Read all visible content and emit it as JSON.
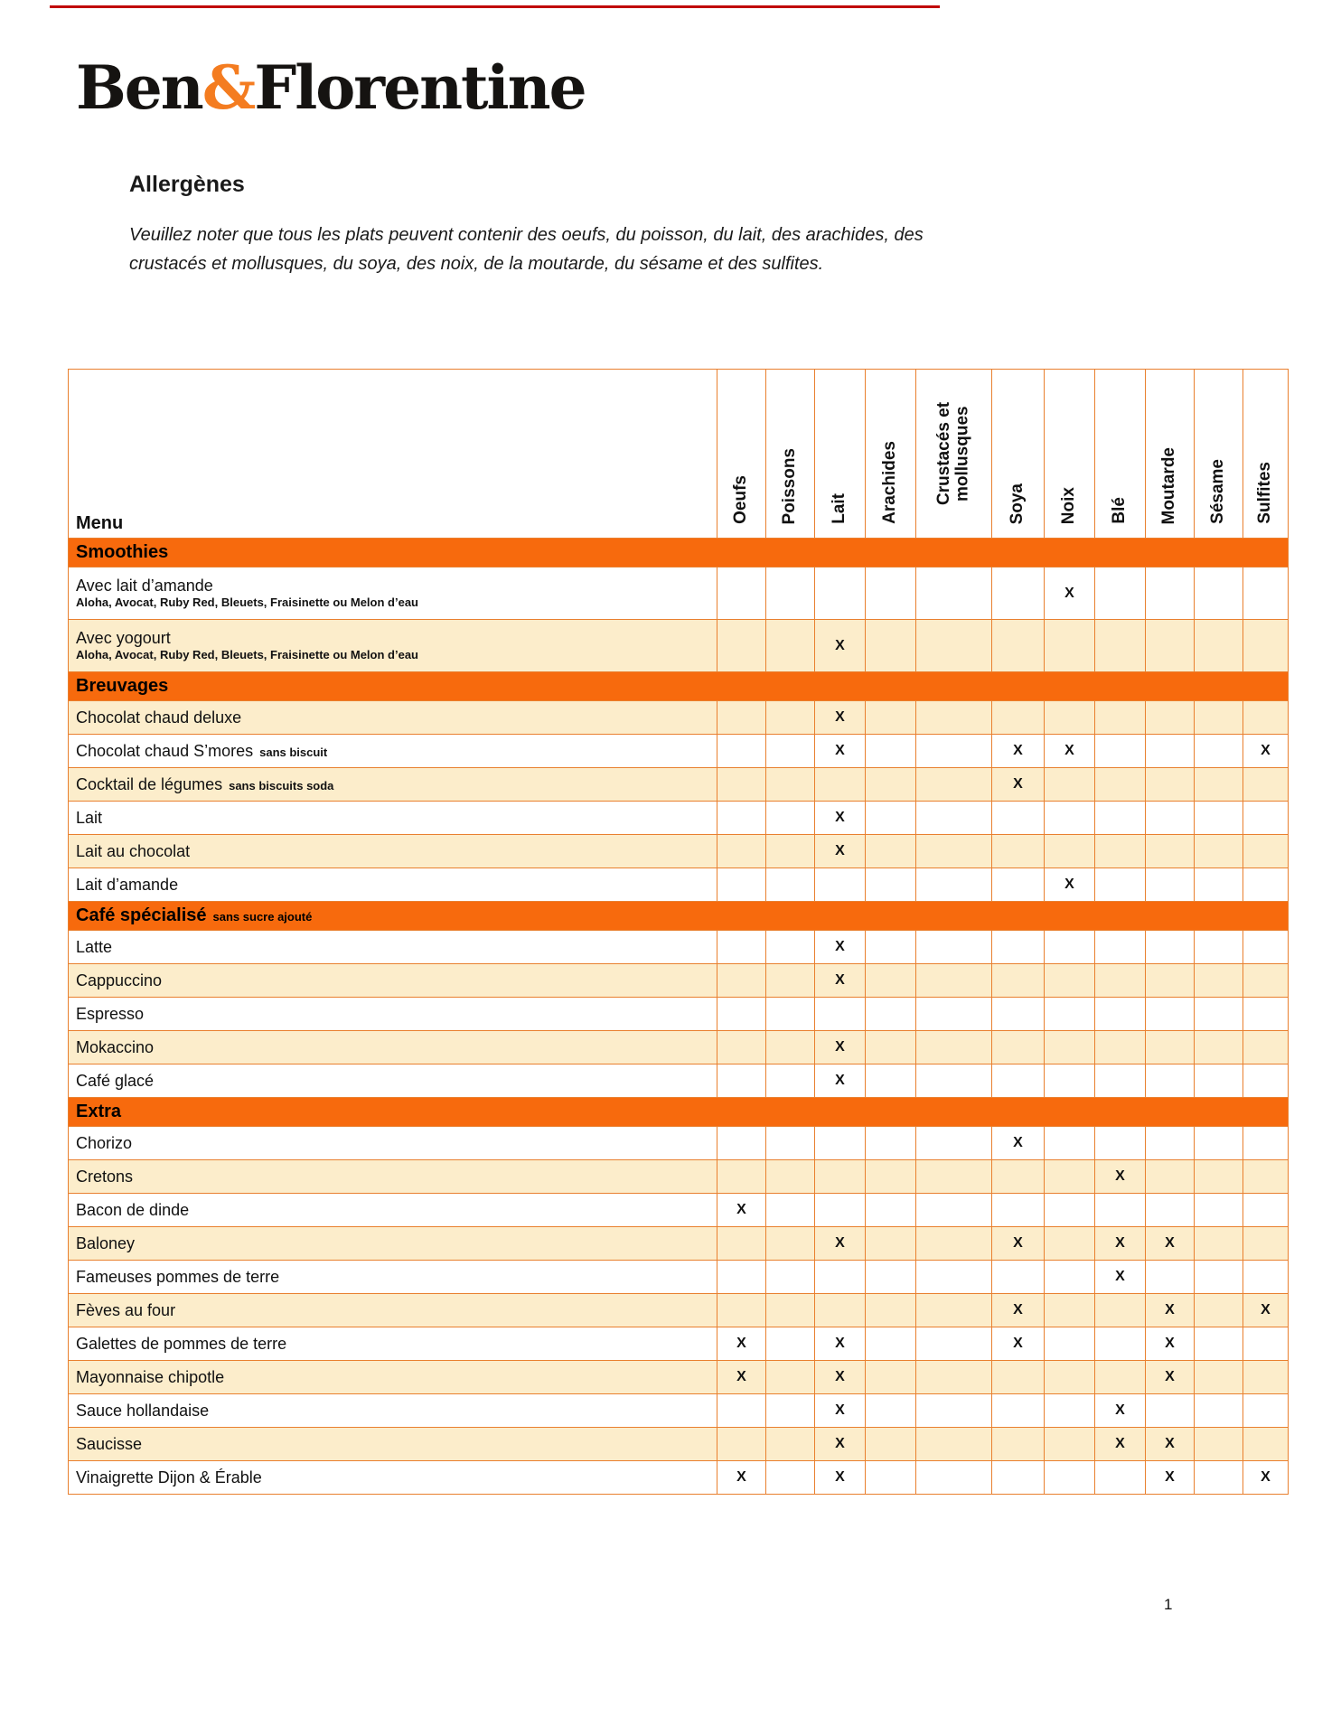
{
  "colors": {
    "top_line": "#C00000",
    "logo_amp": "#F47C20",
    "section_bar": "#F76A0D",
    "grid_border": "#E9802F",
    "shaded_row": "#FCEDCB"
  },
  "logo": {
    "part1": "Ben",
    "amp": "&",
    "part2": "Florentine"
  },
  "heading": "Allergènes",
  "intro": {
    "line1": "Veuillez noter que tous les plats peuvent contenir des oeufs, du poisson, du lait, des arachides, des",
    "line2": "crustacés et mollusques, du soya, des noix, de la moutarde, du sésame et des sulfites."
  },
  "page_number": "1",
  "table": {
    "menu_header": "Menu",
    "x_symbol": "X",
    "columns": [
      "Oeufs",
      "Poissons",
      "Lait",
      "Arachides",
      "Crustacés et mollusques",
      "Soya",
      "Noix",
      "Blé",
      "Moutarde",
      "Sésame",
      "Sulfites"
    ],
    "sections": [
      {
        "title": "Smoothies",
        "note": "",
        "rows": [
          {
            "label": "Avec lait d’amande",
            "note": "",
            "sublabel": "Aloha, Avocat, Ruby Red, Bleuets, Fraisinette ou Melon d’eau",
            "marks": [
              6
            ],
            "shaded": false
          },
          {
            "label": "Avec yogourt",
            "note": "",
            "sublabel": "Aloha, Avocat, Ruby Red, Bleuets, Fraisinette ou Melon d’eau",
            "marks": [
              2
            ],
            "shaded": true
          }
        ]
      },
      {
        "title": "Breuvages",
        "note": "",
        "rows": [
          {
            "label": "Chocolat chaud deluxe",
            "note": "",
            "sublabel": "",
            "marks": [
              2
            ],
            "shaded": true
          },
          {
            "label": "Chocolat chaud S’mores",
            "note": "sans biscuit",
            "sublabel": "",
            "marks": [
              2,
              5,
              6,
              10
            ],
            "shaded": false
          },
          {
            "label": "Cocktail de légumes",
            "note": "sans biscuits soda",
            "sublabel": "",
            "marks": [
              5
            ],
            "shaded": true
          },
          {
            "label": "Lait",
            "note": "",
            "sublabel": "",
            "marks": [
              2
            ],
            "shaded": false
          },
          {
            "label": "Lait au chocolat",
            "note": "",
            "sublabel": "",
            "marks": [
              2
            ],
            "shaded": true
          },
          {
            "label": "Lait d’amande",
            "note": "",
            "sublabel": "",
            "marks": [
              6
            ],
            "shaded": false
          }
        ]
      },
      {
        "title": "Café spécialisé",
        "note": "sans sucre ajouté",
        "rows": [
          {
            "label": "Latte",
            "note": "",
            "sublabel": "",
            "marks": [
              2
            ],
            "shaded": false
          },
          {
            "label": "Cappuccino",
            "note": "",
            "sublabel": "",
            "marks": [
              2
            ],
            "shaded": true
          },
          {
            "label": "Espresso",
            "note": "",
            "sublabel": "",
            "marks": [],
            "shaded": false
          },
          {
            "label": "Mokaccino",
            "note": "",
            "sublabel": "",
            "marks": [
              2
            ],
            "shaded": true
          },
          {
            "label": "Café glacé",
            "note": "",
            "sublabel": "",
            "marks": [
              2
            ],
            "shaded": false
          }
        ]
      },
      {
        "title": "Extra",
        "note": "",
        "rows": [
          {
            "label": "Chorizo",
            "note": "",
            "sublabel": "",
            "marks": [
              5
            ],
            "shaded": false
          },
          {
            "label": "Cretons",
            "note": "",
            "sublabel": "",
            "marks": [
              7
            ],
            "shaded": true
          },
          {
            "label": "Bacon de dinde",
            "note": "",
            "sublabel": "",
            "marks": [
              0
            ],
            "shaded": false
          },
          {
            "label": "Baloney",
            "note": "",
            "sublabel": "",
            "marks": [
              2,
              5,
              7,
              8
            ],
            "shaded": true
          },
          {
            "label": "Fameuses pommes de terre",
            "note": "",
            "sublabel": "",
            "marks": [
              7
            ],
            "shaded": false
          },
          {
            "label": "Fèves au four",
            "note": "",
            "sublabel": "",
            "marks": [
              5,
              8,
              10
            ],
            "shaded": true
          },
          {
            "label": "Galettes de pommes de terre",
            "note": "",
            "sublabel": "",
            "marks": [
              0,
              2,
              5,
              8
            ],
            "shaded": false
          },
          {
            "label": "Mayonnaise chipotle",
            "note": "",
            "sublabel": "",
            "marks": [
              0,
              2,
              8
            ],
            "shaded": true
          },
          {
            "label": "Sauce hollandaise",
            "note": "",
            "sublabel": "",
            "marks": [
              2,
              7
            ],
            "shaded": false
          },
          {
            "label": "Saucisse",
            "note": "",
            "sublabel": "",
            "marks": [
              2,
              7,
              8
            ],
            "shaded": true
          },
          {
            "label": "Vinaigrette Dijon & Érable",
            "note": "",
            "sublabel": "",
            "marks": [
              0,
              2,
              8,
              10
            ],
            "shaded": false
          }
        ]
      }
    ]
  }
}
